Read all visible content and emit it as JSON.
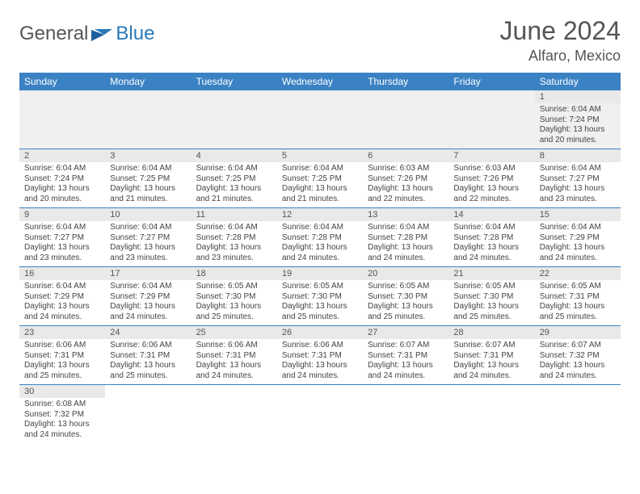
{
  "brand": {
    "word1": "General",
    "word2": "Blue"
  },
  "title": "June 2024",
  "location": "Alfaro, Mexico",
  "colors": {
    "header_bg": "#3b82c4",
    "header_fg": "#ffffff",
    "brand_blue": "#2a7ab9",
    "text": "#555555",
    "row_divider": "#3b82c4",
    "daynum_bg": "#e9e9e9",
    "blank_bg": "#f0f0f0"
  },
  "day_names": [
    "Sunday",
    "Monday",
    "Tuesday",
    "Wednesday",
    "Thursday",
    "Friday",
    "Saturday"
  ],
  "weeks": [
    [
      null,
      null,
      null,
      null,
      null,
      null,
      {
        "d": "1",
        "rise": "6:04 AM",
        "set": "7:24 PM",
        "daylight": "13 hours and 20 minutes."
      }
    ],
    [
      {
        "d": "2",
        "rise": "6:04 AM",
        "set": "7:24 PM",
        "daylight": "13 hours and 20 minutes."
      },
      {
        "d": "3",
        "rise": "6:04 AM",
        "set": "7:25 PM",
        "daylight": "13 hours and 21 minutes."
      },
      {
        "d": "4",
        "rise": "6:04 AM",
        "set": "7:25 PM",
        "daylight": "13 hours and 21 minutes."
      },
      {
        "d": "5",
        "rise": "6:04 AM",
        "set": "7:25 PM",
        "daylight": "13 hours and 21 minutes."
      },
      {
        "d": "6",
        "rise": "6:03 AM",
        "set": "7:26 PM",
        "daylight": "13 hours and 22 minutes."
      },
      {
        "d": "7",
        "rise": "6:03 AM",
        "set": "7:26 PM",
        "daylight": "13 hours and 22 minutes."
      },
      {
        "d": "8",
        "rise": "6:04 AM",
        "set": "7:27 PM",
        "daylight": "13 hours and 23 minutes."
      }
    ],
    [
      {
        "d": "9",
        "rise": "6:04 AM",
        "set": "7:27 PM",
        "daylight": "13 hours and 23 minutes."
      },
      {
        "d": "10",
        "rise": "6:04 AM",
        "set": "7:27 PM",
        "daylight": "13 hours and 23 minutes."
      },
      {
        "d": "11",
        "rise": "6:04 AM",
        "set": "7:28 PM",
        "daylight": "13 hours and 23 minutes."
      },
      {
        "d": "12",
        "rise": "6:04 AM",
        "set": "7:28 PM",
        "daylight": "13 hours and 24 minutes."
      },
      {
        "d": "13",
        "rise": "6:04 AM",
        "set": "7:28 PM",
        "daylight": "13 hours and 24 minutes."
      },
      {
        "d": "14",
        "rise": "6:04 AM",
        "set": "7:28 PM",
        "daylight": "13 hours and 24 minutes."
      },
      {
        "d": "15",
        "rise": "6:04 AM",
        "set": "7:29 PM",
        "daylight": "13 hours and 24 minutes."
      }
    ],
    [
      {
        "d": "16",
        "rise": "6:04 AM",
        "set": "7:29 PM",
        "daylight": "13 hours and 24 minutes."
      },
      {
        "d": "17",
        "rise": "6:04 AM",
        "set": "7:29 PM",
        "daylight": "13 hours and 24 minutes."
      },
      {
        "d": "18",
        "rise": "6:05 AM",
        "set": "7:30 PM",
        "daylight": "13 hours and 25 minutes."
      },
      {
        "d": "19",
        "rise": "6:05 AM",
        "set": "7:30 PM",
        "daylight": "13 hours and 25 minutes."
      },
      {
        "d": "20",
        "rise": "6:05 AM",
        "set": "7:30 PM",
        "daylight": "13 hours and 25 minutes."
      },
      {
        "d": "21",
        "rise": "6:05 AM",
        "set": "7:30 PM",
        "daylight": "13 hours and 25 minutes."
      },
      {
        "d": "22",
        "rise": "6:05 AM",
        "set": "7:31 PM",
        "daylight": "13 hours and 25 minutes."
      }
    ],
    [
      {
        "d": "23",
        "rise": "6:06 AM",
        "set": "7:31 PM",
        "daylight": "13 hours and 25 minutes."
      },
      {
        "d": "24",
        "rise": "6:06 AM",
        "set": "7:31 PM",
        "daylight": "13 hours and 25 minutes."
      },
      {
        "d": "25",
        "rise": "6:06 AM",
        "set": "7:31 PM",
        "daylight": "13 hours and 24 minutes."
      },
      {
        "d": "26",
        "rise": "6:06 AM",
        "set": "7:31 PM",
        "daylight": "13 hours and 24 minutes."
      },
      {
        "d": "27",
        "rise": "6:07 AM",
        "set": "7:31 PM",
        "daylight": "13 hours and 24 minutes."
      },
      {
        "d": "28",
        "rise": "6:07 AM",
        "set": "7:31 PM",
        "daylight": "13 hours and 24 minutes."
      },
      {
        "d": "29",
        "rise": "6:07 AM",
        "set": "7:32 PM",
        "daylight": "13 hours and 24 minutes."
      }
    ],
    [
      {
        "d": "30",
        "rise": "6:08 AM",
        "set": "7:32 PM",
        "daylight": "13 hours and 24 minutes."
      },
      null,
      null,
      null,
      null,
      null,
      null
    ]
  ],
  "labels": {
    "sunrise": "Sunrise: ",
    "sunset": "Sunset: ",
    "daylight": "Daylight: "
  }
}
